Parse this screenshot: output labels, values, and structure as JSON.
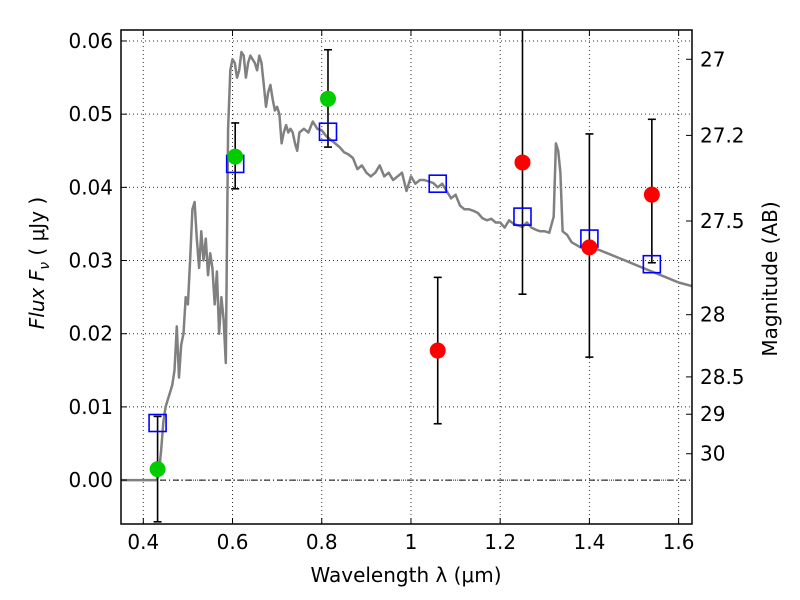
{
  "chart_data": {
    "type": "scatter",
    "xlabel": "Wavelength  λ (μm)",
    "ylabel": "Flux  F",
    "ylabel_sub": "ν",
    "ylabel_unit": " ( μJy )",
    "y2label": "Magnitude (AB)",
    "xlim": [
      0.35,
      1.63
    ],
    "ylim": [
      -0.006,
      0.0615
    ],
    "grid": true,
    "x_ticks": [
      {
        "value": 0.4,
        "label": "0.4"
      },
      {
        "value": 0.6,
        "label": "0.6"
      },
      {
        "value": 0.8,
        "label": "0.8"
      },
      {
        "value": 1.0,
        "label": "1"
      },
      {
        "value": 1.2,
        "label": "1.2"
      },
      {
        "value": 1.4,
        "label": "1.4"
      },
      {
        "value": 1.6,
        "label": "1.6"
      }
    ],
    "y_ticks": [
      {
        "value": 0.0,
        "label": "0.00"
      },
      {
        "value": 0.01,
        "label": "0.01"
      },
      {
        "value": 0.02,
        "label": "0.02"
      },
      {
        "value": 0.03,
        "label": "0.03"
      },
      {
        "value": 0.04,
        "label": "0.04"
      },
      {
        "value": 0.05,
        "label": "0.05"
      },
      {
        "value": 0.06,
        "label": "0.06"
      }
    ],
    "y2_ticks": [
      {
        "flux": 0.0575,
        "label": "27"
      },
      {
        "flux": 0.0471,
        "label": "27.2"
      },
      {
        "flux": 0.0354,
        "label": "27.5"
      },
      {
        "flux": 0.0226,
        "label": "28"
      },
      {
        "flux": 0.0141,
        "label": "28.5"
      },
      {
        "flux": 0.009,
        "label": "29"
      },
      {
        "flux": 0.0036,
        "label": "30"
      }
    ],
    "series": [
      {
        "kind": "model_spectrum",
        "color": "#808080",
        "x": [
          0.35,
          0.43,
          0.435,
          0.44,
          0.445,
          0.45,
          0.455,
          0.46,
          0.465,
          0.47,
          0.475,
          0.48,
          0.485,
          0.49,
          0.495,
          0.5,
          0.505,
          0.51,
          0.515,
          0.52,
          0.525,
          0.53,
          0.535,
          0.54,
          0.545,
          0.55,
          0.555,
          0.56,
          0.565,
          0.57,
          0.575,
          0.58,
          0.585,
          0.59,
          0.595,
          0.6,
          0.605,
          0.61,
          0.615,
          0.62,
          0.625,
          0.63,
          0.635,
          0.64,
          0.645,
          0.65,
          0.655,
          0.66,
          0.665,
          0.67,
          0.675,
          0.68,
          0.685,
          0.69,
          0.695,
          0.7,
          0.705,
          0.71,
          0.715,
          0.72,
          0.725,
          0.73,
          0.735,
          0.74,
          0.745,
          0.75,
          0.76,
          0.77,
          0.78,
          0.79,
          0.8,
          0.81,
          0.82,
          0.83,
          0.84,
          0.85,
          0.86,
          0.87,
          0.88,
          0.89,
          0.9,
          0.91,
          0.92,
          0.93,
          0.94,
          0.95,
          0.96,
          0.97,
          0.98,
          0.99,
          1.0,
          1.01,
          1.02,
          1.03,
          1.04,
          1.05,
          1.06,
          1.07,
          1.08,
          1.09,
          1.1,
          1.11,
          1.12,
          1.13,
          1.14,
          1.15,
          1.16,
          1.17,
          1.18,
          1.19,
          1.2,
          1.21,
          1.22,
          1.23,
          1.24,
          1.25,
          1.26,
          1.27,
          1.28,
          1.29,
          1.3,
          1.31,
          1.32,
          1.325,
          1.33,
          1.335,
          1.34,
          1.35,
          1.36,
          1.38,
          1.4,
          1.42,
          1.44,
          1.46,
          1.48,
          1.5,
          1.52,
          1.54,
          1.56,
          1.58,
          1.6,
          1.63
        ],
        "y": [
          0.0,
          0.0,
          0.001,
          0.004,
          0.008,
          0.01,
          0.011,
          0.012,
          0.013,
          0.015,
          0.021,
          0.014,
          0.0185,
          0.02,
          0.025,
          0.024,
          0.03,
          0.037,
          0.038,
          0.033,
          0.029,
          0.034,
          0.03,
          0.033,
          0.028,
          0.031,
          0.029,
          0.024,
          0.0285,
          0.02,
          0.025,
          0.022,
          0.016,
          0.048,
          0.056,
          0.0575,
          0.057,
          0.055,
          0.056,
          0.0585,
          0.058,
          0.055,
          0.057,
          0.058,
          0.0575,
          0.057,
          0.056,
          0.058,
          0.057,
          0.054,
          0.051,
          0.053,
          0.054,
          0.052,
          0.0505,
          0.051,
          0.05,
          0.046,
          0.0475,
          0.0485,
          0.0475,
          0.048,
          0.0475,
          0.046,
          0.045,
          0.0475,
          0.048,
          0.0475,
          0.049,
          0.048,
          0.0478,
          0.047,
          0.0465,
          0.046,
          0.0455,
          0.0448,
          0.0445,
          0.044,
          0.0425,
          0.043,
          0.042,
          0.0415,
          0.042,
          0.043,
          0.0415,
          0.042,
          0.041,
          0.0415,
          0.042,
          0.0395,
          0.0415,
          0.0405,
          0.041,
          0.041,
          0.0408,
          0.0406,
          0.04,
          0.0405,
          0.0395,
          0.0385,
          0.039,
          0.0375,
          0.037,
          0.037,
          0.0368,
          0.0365,
          0.0358,
          0.0355,
          0.0357,
          0.0352,
          0.0352,
          0.0345,
          0.0355,
          0.035,
          0.0348,
          0.0346,
          0.0352,
          0.0345,
          0.0342,
          0.034,
          0.034,
          0.0338,
          0.036,
          0.046,
          0.045,
          0.042,
          0.034,
          0.0335,
          0.0325,
          0.0318,
          0.0318,
          0.0315,
          0.031,
          0.0305,
          0.03,
          0.0295,
          0.029,
          0.0285,
          0.028,
          0.0275,
          0.027,
          0.0265
        ]
      },
      {
        "kind": "model_band_flux",
        "marker": "open-square",
        "color": "#0000ff",
        "x": [
          0.432,
          0.606,
          0.814,
          1.06,
          1.25,
          1.4,
          1.54
        ],
        "y": [
          0.0078,
          0.0432,
          0.0476,
          0.0405,
          0.036,
          0.033,
          0.0295
        ]
      },
      {
        "kind": "detections",
        "marker": "filled-circle",
        "color": "#00cc00",
        "x": [
          0.432,
          0.606,
          0.814
        ],
        "y": [
          0.0015,
          0.0442,
          0.0521
        ],
        "err_lo": [
          0.0072,
          0.0044,
          0.0066
        ],
        "err_hi": [
          0.0072,
          0.0046,
          0.0067
        ]
      },
      {
        "kind": "upper_limits",
        "marker": "filled-circle",
        "color": "#ff0000",
        "x": [
          1.06,
          1.25,
          1.4,
          1.54
        ],
        "y": [
          0.0177,
          0.0434,
          0.0318,
          0.039
        ],
        "err_lo": [
          0.01,
          0.018,
          0.015,
          0.0093
        ],
        "err_hi": [
          0.01,
          0.018,
          0.0155,
          0.0103
        ]
      }
    ]
  }
}
